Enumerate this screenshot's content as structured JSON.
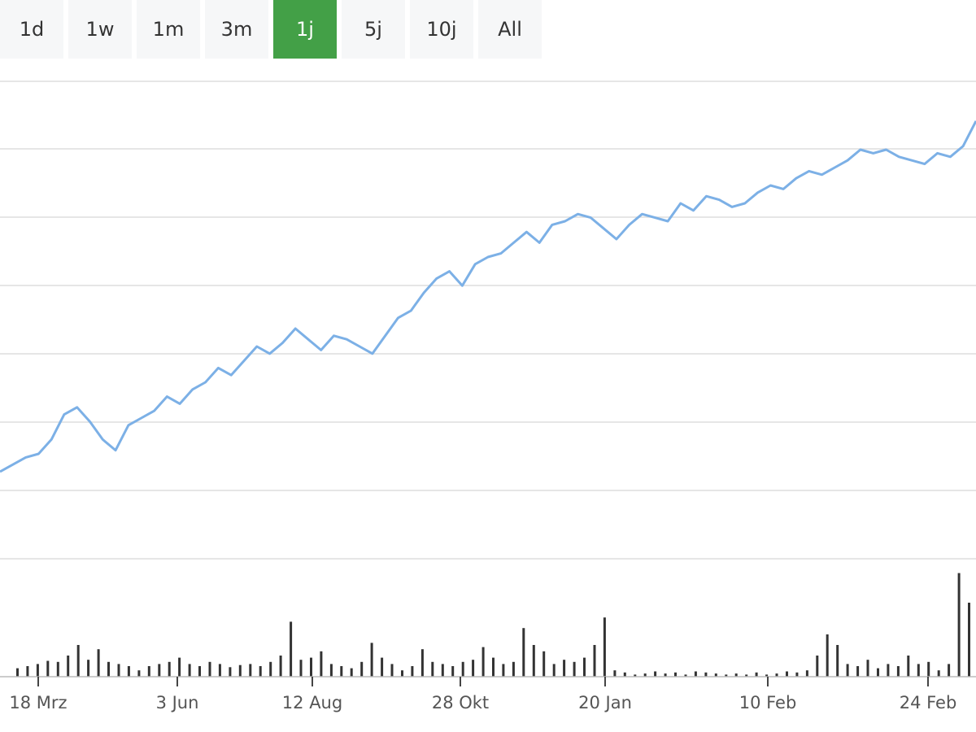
{
  "range_tabs": [
    {
      "label": "1d",
      "active": false
    },
    {
      "label": "1w",
      "active": false
    },
    {
      "label": "1m",
      "active": false
    },
    {
      "label": "3m",
      "active": false
    },
    {
      "label": "1j",
      "active": true
    },
    {
      "label": "5j",
      "active": false
    },
    {
      "label": "10j",
      "active": false
    },
    {
      "label": "All",
      "active": false
    }
  ],
  "colors": {
    "line": "#7cb0e6",
    "volume": "#333333",
    "active_tab": "#43a047",
    "grid": "#dddddd"
  },
  "chart_data": {
    "type": "line",
    "title": "",
    "xlabel": "",
    "ylabel": "",
    "y_tick_labels_shown": false,
    "grid": true,
    "x_tick_labels": [
      "18 Mrz",
      "3 Jun",
      "12 Aug",
      "28 Okt",
      "20 Jan",
      "10 Feb",
      "24 Feb"
    ],
    "series": [
      {
        "values": [
          0.0,
          0.02,
          0.04,
          0.05,
          0.09,
          0.16,
          0.18,
          0.14,
          0.09,
          0.06,
          0.13,
          0.15,
          0.17,
          0.21,
          0.19,
          0.23,
          0.25,
          0.29,
          0.27,
          0.31,
          0.35,
          0.33,
          0.36,
          0.4,
          0.37,
          0.34,
          0.38,
          0.37,
          0.35,
          0.33,
          0.38,
          0.43,
          0.45,
          0.5,
          0.54,
          0.56,
          0.52,
          0.58,
          0.6,
          0.61,
          0.64,
          0.67,
          0.64,
          0.69,
          0.7,
          0.72,
          0.71,
          0.68,
          0.65,
          0.69,
          0.72,
          0.71,
          0.7,
          0.75,
          0.73,
          0.77,
          0.76,
          0.74,
          0.75,
          0.78,
          0.8,
          0.79,
          0.82,
          0.84,
          0.83,
          0.85,
          0.87,
          0.9,
          0.89,
          0.9,
          0.88,
          0.87,
          0.86,
          0.89,
          0.88,
          0.91,
          0.98
        ]
      },
      {
        "type": "volume",
        "values": [
          0.08,
          0.1,
          0.12,
          0.15,
          0.14,
          0.2,
          0.3,
          0.16,
          0.26,
          0.14,
          0.12,
          0.1,
          0.06,
          0.1,
          0.12,
          0.14,
          0.18,
          0.12,
          0.1,
          0.14,
          0.12,
          0.09,
          0.11,
          0.12,
          0.1,
          0.14,
          0.2,
          0.52,
          0.16,
          0.18,
          0.24,
          0.12,
          0.1,
          0.08,
          0.14,
          0.32,
          0.18,
          0.12,
          0.06,
          0.1,
          0.26,
          0.14,
          0.12,
          0.1,
          0.14,
          0.16,
          0.28,
          0.18,
          0.12,
          0.14,
          0.46,
          0.3,
          0.24,
          0.12,
          0.16,
          0.14,
          0.18,
          0.3,
          0.56,
          0.06,
          0.04,
          0.02,
          0.03,
          0.05,
          0.03,
          0.04,
          0.02,
          0.05,
          0.04,
          0.03,
          0.02,
          0.03,
          0.02,
          0.04,
          0.02,
          0.03,
          0.05,
          0.04,
          0.06,
          0.2,
          0.4,
          0.3,
          0.12,
          0.1,
          0.16,
          0.08,
          0.12,
          0.1,
          0.2,
          0.12,
          0.14,
          0.06,
          0.12,
          0.98,
          0.7
        ]
      }
    ]
  }
}
